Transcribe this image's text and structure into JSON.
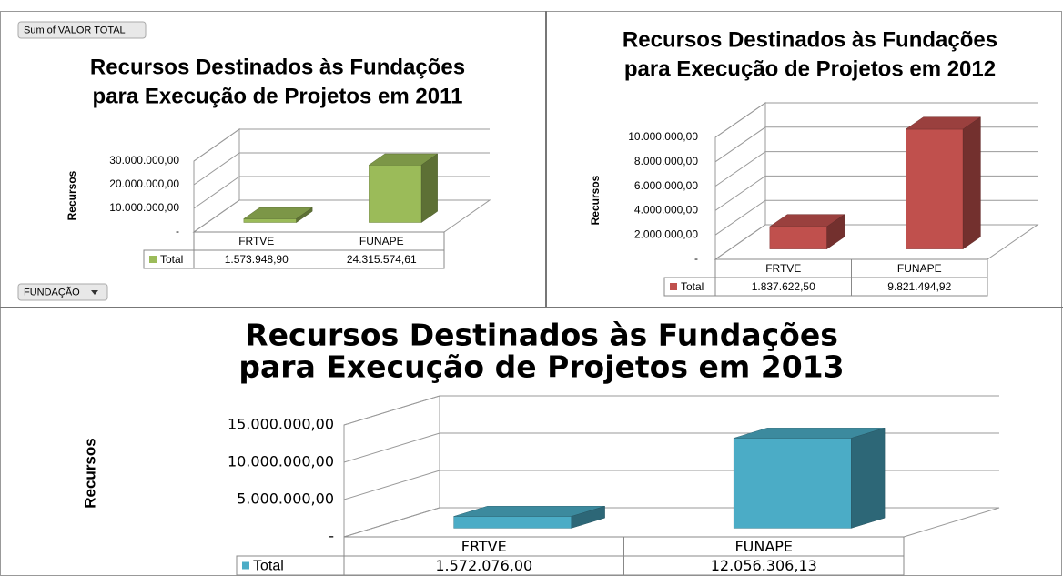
{
  "pivot_buttons": {
    "value_field": "Sum of VALOR TOTAL",
    "axis_field": "FUNDAÇÃO"
  },
  "chart_data": [
    {
      "type": "bar3d",
      "title": [
        "Recursos Destinados às Fundações",
        "para Execução de Projetos em 2011"
      ],
      "y_label": "Recursos",
      "categories": [
        "FRTVE",
        "FUNAPE"
      ],
      "series": [
        {
          "name": "Total",
          "color": "#9bbb59",
          "values": [
            1573948.9,
            24315574.61
          ],
          "value_labels": [
            "1.573.948,90",
            "24.315.574,61"
          ]
        }
      ],
      "ylim": [
        0,
        30000000
      ],
      "yticks": [
        {
          "value": 0,
          "label": "-"
        },
        {
          "value": 10000000,
          "label": "10.000.000,00"
        },
        {
          "value": 20000000,
          "label": "20.000.000,00"
        },
        {
          "value": 30000000,
          "label": "30.000.000,00"
        }
      ],
      "grid": true
    },
    {
      "type": "bar3d",
      "title": [
        "Recursos Destinados às Fundações",
        "para Execução de Projetos em 2012"
      ],
      "y_label": "Recursos",
      "categories": [
        "FRTVE",
        "FUNAPE"
      ],
      "series": [
        {
          "name": "Total",
          "color": "#c0504d",
          "values": [
            1837622.5,
            9821494.92
          ],
          "value_labels": [
            "1.837.622,50",
            "9.821.494,92"
          ]
        }
      ],
      "ylim": [
        0,
        10000000
      ],
      "yticks": [
        {
          "value": 0,
          "label": "-"
        },
        {
          "value": 2000000,
          "label": "2.000.000,00"
        },
        {
          "value": 4000000,
          "label": "4.000.000,00"
        },
        {
          "value": 6000000,
          "label": "6.000.000,00"
        },
        {
          "value": 8000000,
          "label": "8.000.000,00"
        },
        {
          "value": 10000000,
          "label": "10.000.000,00"
        }
      ],
      "grid": true
    },
    {
      "type": "bar3d",
      "title": [
        "Recursos Destinados às Fundações",
        "para Execução de Projetos em 2013"
      ],
      "y_label": "Recursos",
      "categories": [
        "FRTVE",
        "FUNAPE"
      ],
      "series": [
        {
          "name": "Total",
          "color": "#4bacc6",
          "values": [
            1572076.0,
            12056306.13
          ],
          "value_labels": [
            "1.572.076,00",
            "12.056.306,13"
          ]
        }
      ],
      "ylim": [
        0,
        15000000
      ],
      "yticks": [
        {
          "value": 0,
          "label": "-"
        },
        {
          "value": 5000000,
          "label": "5.000.000,00"
        },
        {
          "value": 10000000,
          "label": "10.000.000,00"
        },
        {
          "value": 15000000,
          "label": "15.000.000,00"
        }
      ],
      "grid": true
    }
  ]
}
